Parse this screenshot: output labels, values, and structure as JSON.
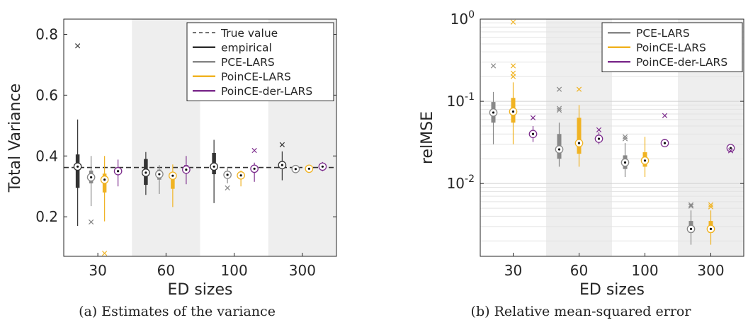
{
  "panels": {
    "a_caption": "(a) Estimates of the variance",
    "b_caption": "(b) Relative mean-squared error"
  },
  "chart_data": [
    {
      "type": "box",
      "xlabel": "ED sizes",
      "ylabel": "Total Variance",
      "categories": [
        "30",
        "60",
        "100",
        "300"
      ],
      "ylim": [
        0.07,
        0.85
      ],
      "yticks": [
        0.2,
        0.4,
        0.6,
        0.8
      ],
      "ytick_labels": [
        "0.2",
        "0.4",
        "0.6",
        "0.8"
      ],
      "grid": false,
      "shaded_categories": [
        "60",
        "300"
      ],
      "reference_line": {
        "name": "True value",
        "value": 0.362
      },
      "legend": {
        "position": "top-right",
        "entries": [
          "True value",
          "empirical",
          "PCE-LARS",
          "PoinCE-LARS",
          "PoinCE-der-LARS"
        ]
      },
      "series": [
        {
          "name": "empirical",
          "color": "#333333",
          "boxes": [
            {
              "category": "30",
              "whisker_low": 0.17,
              "q1": 0.295,
              "median": 0.365,
              "q3": 0.405,
              "whisker_high": 0.52,
              "outliers": [
                0.762
              ]
            },
            {
              "category": "60",
              "whisker_low": 0.272,
              "q1": 0.305,
              "median": 0.345,
              "q3": 0.39,
              "whisker_high": 0.413,
              "outliers": []
            },
            {
              "category": "100",
              "whisker_low": 0.245,
              "q1": 0.34,
              "median": 0.365,
              "q3": 0.41,
              "whisker_high": 0.453,
              "outliers": []
            },
            {
              "category": "300",
              "whisker_low": 0.32,
              "q1": 0.36,
              "median": 0.37,
              "q3": 0.38,
              "whisker_high": 0.415,
              "outliers": [
                0.437
              ]
            }
          ]
        },
        {
          "name": "PCE-LARS",
          "color": "#888888",
          "boxes": [
            {
              "category": "30",
              "whisker_low": 0.235,
              "q1": 0.31,
              "median": 0.33,
              "q3": 0.352,
              "whisker_high": 0.4,
              "outliers": [
                0.183
              ]
            },
            {
              "category": "60",
              "whisker_low": 0.275,
              "q1": 0.322,
              "median": 0.34,
              "q3": 0.355,
              "whisker_high": 0.37,
              "outliers": []
            },
            {
              "category": "100",
              "whisker_low": 0.31,
              "q1": 0.328,
              "median": 0.338,
              "q3": 0.348,
              "whisker_high": 0.36,
              "outliers": [
                0.295
              ]
            },
            {
              "category": "300",
              "whisker_low": 0.352,
              "q1": 0.355,
              "median": 0.357,
              "q3": 0.359,
              "whisker_high": 0.362,
              "outliers": []
            }
          ]
        },
        {
          "name": "PoinCE-LARS",
          "color": "#f0b323",
          "boxes": [
            {
              "category": "30",
              "whisker_low": 0.185,
              "q1": 0.28,
              "median": 0.322,
              "q3": 0.342,
              "whisker_high": 0.4,
              "outliers": [
                0.08
              ]
            },
            {
              "category": "60",
              "whisker_low": 0.232,
              "q1": 0.292,
              "median": 0.335,
              "q3": 0.345,
              "whisker_high": 0.372,
              "outliers": []
            },
            {
              "category": "100",
              "whisker_low": 0.3,
              "q1": 0.328,
              "median": 0.336,
              "q3": 0.342,
              "whisker_high": 0.352,
              "outliers": []
            },
            {
              "category": "300",
              "whisker_low": 0.354,
              "q1": 0.356,
              "median": 0.358,
              "q3": 0.36,
              "whisker_high": 0.362,
              "outliers": []
            }
          ]
        },
        {
          "name": "PoinCE-der-LARS",
          "color": "#7e2f8e",
          "boxes": [
            {
              "category": "30",
              "whisker_low": 0.3,
              "q1": 0.34,
              "median": 0.35,
              "q3": 0.362,
              "whisker_high": 0.388,
              "outliers": []
            },
            {
              "category": "60",
              "whisker_low": 0.307,
              "q1": 0.345,
              "median": 0.355,
              "q3": 0.37,
              "whisker_high": 0.4,
              "outliers": []
            },
            {
              "category": "100",
              "whisker_low": 0.315,
              "q1": 0.35,
              "median": 0.358,
              "q3": 0.365,
              "whisker_high": 0.378,
              "outliers": [
                0.418
              ]
            },
            {
              "category": "300",
              "whisker_low": 0.35,
              "q1": 0.36,
              "median": 0.365,
              "q3": 0.37,
              "whisker_high": 0.38,
              "outliers": []
            }
          ]
        }
      ]
    },
    {
      "type": "box",
      "xlabel": "ED sizes",
      "ylabel": "relMSE",
      "yscale": "log",
      "categories": [
        "30",
        "60",
        "100",
        "300"
      ],
      "ylim": [
        0.0013,
        1.0
      ],
      "yticks": [
        0.01,
        0.1,
        1.0
      ],
      "ytick_labels": [
        [
          "10",
          "-2"
        ],
        [
          "10",
          "-1"
        ],
        [
          "10",
          "0"
        ]
      ],
      "grid": true,
      "shaded_categories": [
        "60",
        "300"
      ],
      "legend": {
        "position": "top-right",
        "entries": [
          "PCE-LARS",
          "PoinCE-LARS",
          "PoinCE-der-LARS"
        ]
      },
      "series": [
        {
          "name": "PCE-LARS",
          "color": "#888888",
          "boxes": [
            {
              "category": "30",
              "whisker_low": 0.03,
              "q1": 0.055,
              "median": 0.073,
              "q3": 0.098,
              "whisker_high": 0.13,
              "outliers": [
                0.27
              ]
            },
            {
              "category": "60",
              "whisker_low": 0.016,
              "q1": 0.02,
              "median": 0.026,
              "q3": 0.04,
              "whisker_high": 0.055,
              "outliers": [
                0.078,
                0.082,
                0.14
              ]
            },
            {
              "category": "100",
              "whisker_low": 0.012,
              "q1": 0.015,
              "median": 0.018,
              "q3": 0.022,
              "whisker_high": 0.031,
              "outliers": [
                0.035,
                0.037
              ]
            },
            {
              "category": "300",
              "whisker_low": 0.0018,
              "q1": 0.0025,
              "median": 0.0028,
              "q3": 0.0035,
              "whisker_high": 0.0047,
              "outliers": [
                0.0053,
                0.0055
              ]
            }
          ]
        },
        {
          "name": "PoinCE-LARS",
          "color": "#f0b323",
          "boxes": [
            {
              "category": "30",
              "whisker_low": 0.03,
              "q1": 0.055,
              "median": 0.075,
              "q3": 0.11,
              "whisker_high": 0.17,
              "outliers": [
                0.2,
                0.22,
                0.27,
                0.92
              ]
            },
            {
              "category": "60",
              "whisker_low": 0.016,
              "q1": 0.023,
              "median": 0.031,
              "q3": 0.063,
              "whisker_high": 0.09,
              "outliers": [
                0.14
              ]
            },
            {
              "category": "100",
              "whisker_low": 0.012,
              "q1": 0.016,
              "median": 0.019,
              "q3": 0.024,
              "whisker_high": 0.037,
              "outliers": []
            },
            {
              "category": "300",
              "whisker_low": 0.0018,
              "q1": 0.0025,
              "median": 0.0028,
              "q3": 0.0035,
              "whisker_high": 0.0047,
              "outliers": [
                0.0052,
                0.0055
              ]
            }
          ]
        },
        {
          "name": "PoinCE-der-LARS",
          "color": "#7e2f8e",
          "boxes": [
            {
              "category": "30",
              "whisker_low": 0.032,
              "q1": 0.037,
              "median": 0.04,
              "q3": 0.044,
              "whisker_high": 0.05,
              "outliers": [
                0.063
              ]
            },
            {
              "category": "60",
              "whisker_low": 0.03,
              "q1": 0.032,
              "median": 0.035,
              "q3": 0.038,
              "whisker_high": 0.042,
              "outliers": [
                0.045
              ]
            },
            {
              "category": "100",
              "whisker_low": 0.028,
              "q1": 0.029,
              "median": 0.031,
              "q3": 0.033,
              "whisker_high": 0.035,
              "outliers": [
                0.067
              ]
            },
            {
              "category": "300",
              "whisker_low": 0.025,
              "q1": 0.026,
              "median": 0.027,
              "q3": 0.028,
              "whisker_high": 0.029,
              "outliers": [
                0.025
              ]
            }
          ]
        }
      ]
    }
  ]
}
